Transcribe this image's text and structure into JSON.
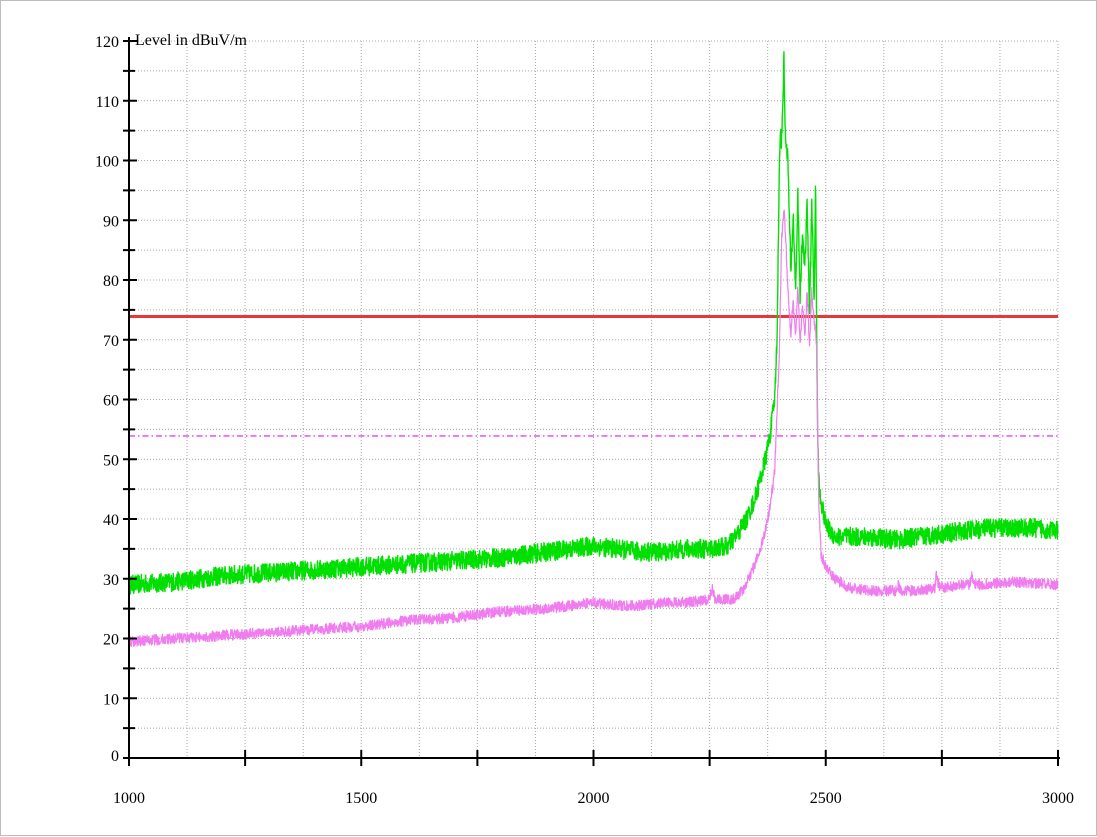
{
  "chart_data": {
    "type": "line",
    "ylabel": "Level in dBuV/m",
    "xlabel": "",
    "xlim": [
      1000,
      3000
    ],
    "ylim": [
      0,
      120
    ],
    "x_ticks": [
      1000,
      1500,
      2000,
      2500,
      3000
    ],
    "y_ticks": [
      0,
      10,
      20,
      30,
      40,
      50,
      60,
      70,
      80,
      90,
      100,
      110,
      120
    ],
    "grid": true,
    "grid_style": "dotted",
    "limits": [
      {
        "value": 73.9,
        "color": "#e53935",
        "style": "solid"
      },
      {
        "value": 53.9,
        "color": "#e040fb",
        "style": "dash-dot"
      }
    ],
    "series": [
      {
        "color": "#00e000",
        "x": [
          1000,
          1100,
          1200,
          1300,
          1400,
          1500,
          1600,
          1700,
          1800,
          1900,
          2000,
          2100,
          2150,
          2200,
          2250,
          2290,
          2310,
          2330,
          2350,
          2370,
          2380,
          2390,
          2395,
          2400,
          2403,
          2405,
          2410,
          2413,
          2418,
          2425,
          2430,
          2435,
          2440,
          2445,
          2450,
          2455,
          2460,
          2465,
          2470,
          2475,
          2478,
          2480,
          2483,
          2486,
          2490,
          2500,
          2520,
          2550,
          2600,
          2650,
          2700,
          2750,
          2800,
          2850,
          2900,
          2950,
          3000
        ],
        "values": [
          29,
          29.5,
          30.5,
          31,
          31.5,
          32,
          32.5,
          33,
          33.5,
          34.5,
          35.5,
          34.5,
          34.5,
          35,
          35,
          35.5,
          37.5,
          40,
          44,
          50,
          54,
          60,
          70,
          98,
          106,
          103,
          117,
          104,
          101,
          81,
          91,
          78,
          94,
          77,
          88,
          82,
          93,
          74,
          93,
          76,
          97,
          75,
          52,
          45,
          43,
          39,
          37,
          37,
          37,
          36.5,
          37,
          37.5,
          38,
          38.5,
          38.5,
          38.5,
          38
        ]
      },
      {
        "color": "#f07cf0",
        "x": [
          1000,
          1100,
          1200,
          1300,
          1400,
          1500,
          1600,
          1700,
          1800,
          1900,
          1950,
          2000,
          2050,
          2100,
          2150,
          2200,
          2250,
          2255,
          2262,
          2300,
          2320,
          2340,
          2360,
          2370,
          2380,
          2390,
          2400,
          2405,
          2410,
          2415,
          2420,
          2425,
          2430,
          2435,
          2440,
          2445,
          2450,
          2455,
          2460,
          2465,
          2470,
          2475,
          2480,
          2485,
          2490,
          2500,
          2520,
          2550,
          2600,
          2650,
          2655,
          2662,
          2700,
          2735,
          2738,
          2745,
          2800,
          2810,
          2815,
          2822,
          2900,
          3000
        ],
        "values": [
          19.5,
          20,
          20.5,
          21,
          21.5,
          22,
          23,
          23.5,
          24.5,
          25,
          25.5,
          26,
          25.5,
          25.5,
          26,
          26,
          26.5,
          28.5,
          26.5,
          26.5,
          28,
          31,
          35,
          38,
          42,
          48,
          68,
          87,
          92,
          85,
          76,
          71,
          77,
          70,
          79,
          69,
          76,
          71,
          78,
          69,
          78,
          73,
          70,
          42,
          34,
          32,
          30,
          28.5,
          28,
          28,
          29,
          28,
          28,
          28.5,
          30.5,
          28.5,
          29,
          29,
          30.5,
          29,
          29.5,
          29
        ]
      }
    ]
  }
}
